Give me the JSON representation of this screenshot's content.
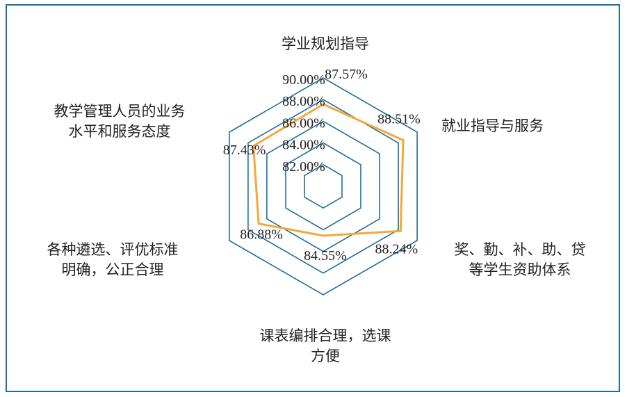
{
  "chart_data": {
    "type": "radar",
    "categories": [
      [
        "学业规划指导"
      ],
      [
        "就业指导与服务"
      ],
      [
        "奖、勤、补、助、贷",
        "等学生资助体系"
      ],
      [
        "课表编排合理，选课",
        "方便"
      ],
      [
        "各种遴选、评优标准",
        "明确，公正合理"
      ],
      [
        "教学管理人员的业务",
        "水平和服务态度"
      ]
    ],
    "values": [
      87.57,
      88.51,
      88.24,
      84.55,
      86.88,
      87.43
    ],
    "value_labels": [
      "87.57%",
      "88.51%",
      "88.24%",
      "84.55%",
      "86.88%",
      "87.43%"
    ],
    "ticks": [
      82,
      84,
      86,
      88,
      90
    ],
    "tick_labels": [
      "82.00%",
      "84.00%",
      "86.00%",
      "88.00%",
      "90.00%"
    ],
    "rmin": 80,
    "rmax": 90,
    "grid": true,
    "legend": "none",
    "colors": {
      "grid": "#1f6e98",
      "series": "#f5a83a",
      "text": "#222222"
    }
  }
}
